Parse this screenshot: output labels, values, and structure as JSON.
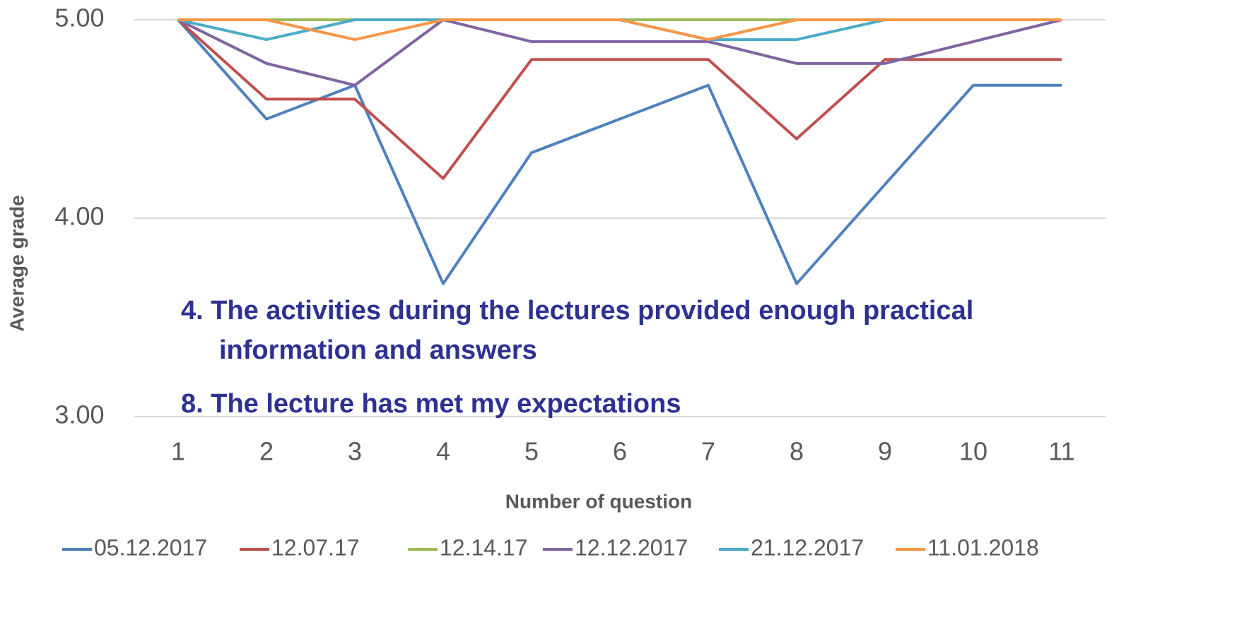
{
  "chart_data": {
    "type": "line",
    "xlabel": "Number of question",
    "ylabel": "Average grade",
    "categories": [
      "1",
      "2",
      "3",
      "4",
      "5",
      "6",
      "7",
      "8",
      "9",
      "10",
      "11"
    ],
    "series": [
      {
        "name": "05.12.2017",
        "color": "#4f81bd",
        "values": [
          5,
          4.5,
          4.67,
          3.67,
          4.33,
          4.5,
          4.67,
          3.67,
          4.17,
          4.67,
          4.67
        ]
      },
      {
        "name": "12.07.17",
        "color": "#c0504d",
        "values": [
          5,
          4.6,
          4.6,
          4.2,
          4.8,
          4.8,
          4.8,
          4.4,
          4.8,
          4.8,
          4.8
        ]
      },
      {
        "name": "12.14.17",
        "color": "#9bbb59",
        "values": [
          5,
          5,
          5,
          5,
          5,
          5,
          5,
          5,
          5,
          5,
          5
        ]
      },
      {
        "name": "12.12.2017",
        "color": "#8064a2",
        "values": [
          5,
          4.78,
          4.67,
          5,
          4.89,
          4.89,
          4.89,
          4.78,
          4.78,
          4.89,
          5
        ]
      },
      {
        "name": "21.12.2017",
        "color": "#4bacc6",
        "values": [
          5,
          4.9,
          5,
          5,
          5,
          5,
          4.9,
          4.9,
          5,
          5,
          5
        ]
      },
      {
        "name": "11.01.2018",
        "color": "#f79646",
        "values": [
          5,
          5,
          4.9,
          5,
          5,
          5,
          4.9,
          5,
          5,
          5,
          5
        ]
      }
    ],
    "ylim": [
      3,
      5
    ],
    "yticks": [
      {
        "value": 3,
        "label": "3.00"
      },
      {
        "value": 4,
        "label": "4.00"
      },
      {
        "value": 5,
        "label": "5.00"
      }
    ],
    "grid": true,
    "legend": "bottom",
    "annotations": [
      "4. The activities during the lectures provided enough practical",
      "information and answers",
      "8. The lecture has met my expectations"
    ]
  }
}
